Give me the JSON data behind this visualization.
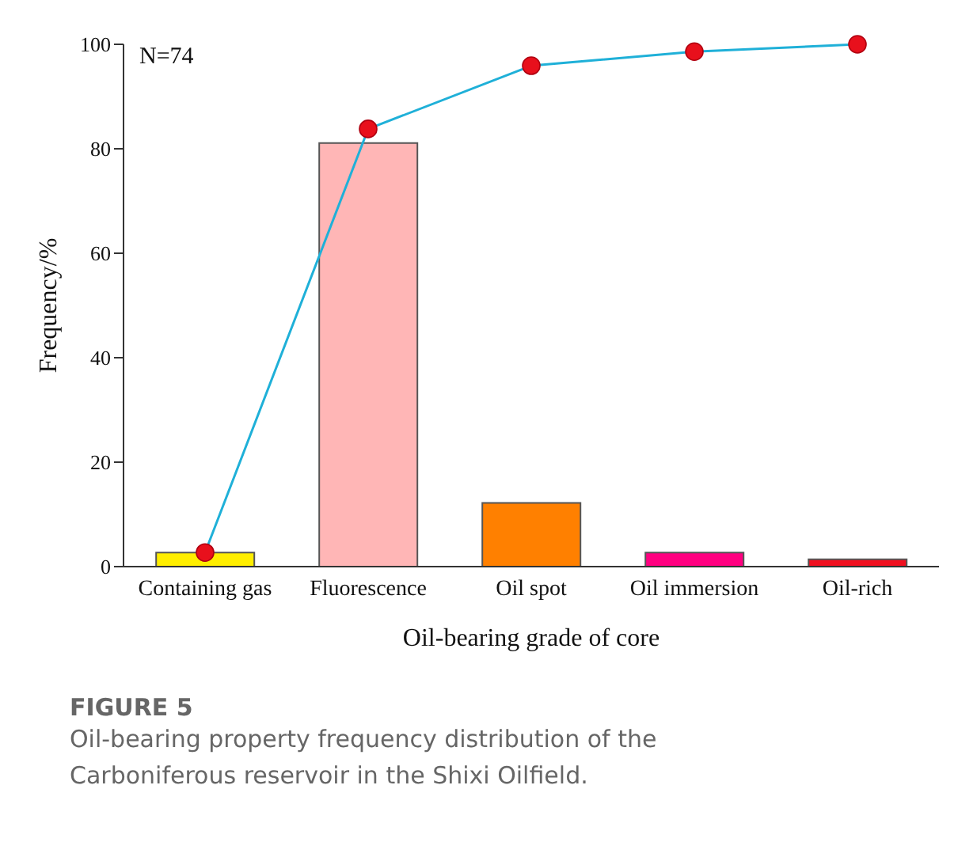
{
  "chart_data": {
    "type": "bar",
    "title": "FIGURE 5",
    "subtitle": "Oil-bearing property frequency distribution of the Carboniferous reservoir in the Shixi Oilfield.",
    "xlabel": "Oil-bearing grade of core",
    "ylabel": "Frequency/%",
    "annotations": [
      "N=74"
    ],
    "categories": [
      "Containing gas",
      "Fluorescence",
      "Oil spot",
      "Oil immersion",
      "Oil-rich"
    ],
    "series": [
      {
        "colors": [
          "#ffee00",
          "#ffb6b6",
          "#ff8000",
          "#ff0080",
          "#f01020"
        ],
        "values": [
          2.7,
          81.1,
          12.2,
          2.7,
          1.4
        ]
      },
      {
        "type": "line",
        "color": "#1fb0d8",
        "colors": [
          "#e8101c",
          "#e8101c",
          "#e8101c",
          "#e8101c",
          "#e8101c"
        ],
        "values": [
          2.7,
          83.8,
          95.9,
          98.6,
          100
        ]
      }
    ],
    "ylim": [
      0,
      100
    ],
    "yticks": [
      0,
      20,
      40,
      60,
      80,
      100
    ],
    "grid": false,
    "legend": false,
    "marker": "circle",
    "line_style": "solid"
  }
}
